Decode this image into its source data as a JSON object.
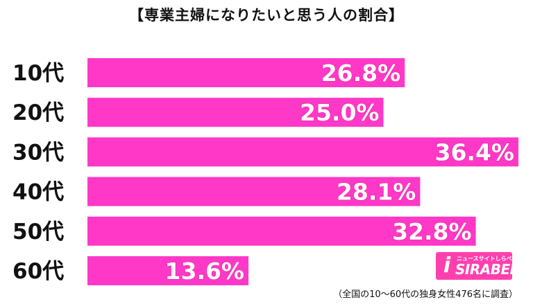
{
  "chart_data": {
    "type": "bar",
    "orientation": "horizontal",
    "title": "【専業主婦になりたいと思う人の割合】",
    "categories": [
      "10代",
      "20代",
      "30代",
      "40代",
      "50代",
      "60代"
    ],
    "values": [
      26.8,
      25.0,
      36.4,
      28.1,
      32.8,
      13.6
    ],
    "value_labels": [
      "26.8%",
      "25.0%",
      "36.4%",
      "28.1%",
      "32.8%",
      "13.6%"
    ],
    "xlim": [
      0,
      36.4
    ],
    "grid": false,
    "bar_color": "#ff38c8",
    "label_color": "#ffffff",
    "footnote": "（全国の10〜60代の独身女性476名に調査）"
  },
  "logo": {
    "mark": "i",
    "tagline": "ニュースサイトしらべぇ",
    "text": "SIRABEE",
    "color": "#ff3fae"
  }
}
